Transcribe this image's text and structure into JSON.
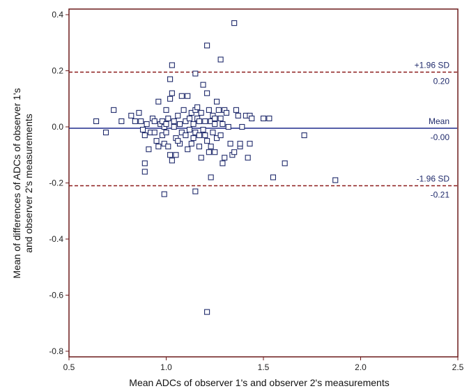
{
  "chart_data": {
    "type": "scatter",
    "title": "",
    "xlabel": "Mean ADCs of observer 1's and observer 2's measurements",
    "ylabel_line1": "Mean of differences of  ADCs of observer 1's",
    "ylabel_line2": "and observer 2's measurements",
    "xlim": [
      0.5,
      2.5
    ],
    "ylim": [
      -0.82,
      0.42
    ],
    "xticks": [
      0.5,
      1.0,
      1.5,
      2.0,
      2.5
    ],
    "xtick_labels": [
      "0.5",
      "1.0",
      "1.5",
      "2.0",
      "2.5"
    ],
    "yticks": [
      0.4,
      0.2,
      0.0,
      -0.2,
      -0.4,
      -0.6,
      -0.8
    ],
    "ytick_labels": [
      "0.4",
      "0.2",
      "0.0",
      "-0.2",
      "-0.4",
      "-0.6",
      "-0.8"
    ],
    "reference_lines": [
      {
        "name": "upper-limit",
        "y": 0.195,
        "style": "dashed",
        "color": "#8b1a1a",
        "label_top": "+1.96 SD",
        "label_bottom": "0.20"
      },
      {
        "name": "mean",
        "y": -0.005,
        "style": "solid",
        "color": "#1f2a8b",
        "label_top": "Mean",
        "label_bottom": "-0.00"
      },
      {
        "name": "lower-limit",
        "y": -0.21,
        "style": "dashed",
        "color": "#8b1a1a",
        "label_top": "-1.96 SD",
        "label_bottom": "-0.21"
      }
    ],
    "frame_color": "#6b1a1a",
    "marker_color": "#1f2a6b",
    "points": [
      [
        0.64,
        0.02
      ],
      [
        0.69,
        -0.02
      ],
      [
        0.73,
        0.06
      ],
      [
        0.77,
        0.02
      ],
      [
        0.82,
        0.04
      ],
      [
        0.84,
        0.02
      ],
      [
        0.86,
        0.05
      ],
      [
        0.87,
        0.02
      ],
      [
        0.88,
        -0.01
      ],
      [
        0.89,
        -0.03
      ],
      [
        0.9,
        0.01
      ],
      [
        0.91,
        -0.08
      ],
      [
        0.92,
        -0.02
      ],
      [
        0.89,
        -0.13
      ],
      [
        0.89,
        -0.16
      ],
      [
        0.93,
        0.03
      ],
      [
        0.94,
        -0.02
      ],
      [
        0.94,
        0.02
      ],
      [
        0.95,
        -0.05
      ],
      [
        0.96,
        -0.07
      ],
      [
        0.96,
        0.09
      ],
      [
        0.97,
        0.01
      ],
      [
        0.98,
        -0.03
      ],
      [
        0.98,
        0.02
      ],
      [
        0.99,
        -0.06
      ],
      [
        0.99,
        0.0
      ],
      [
        1.0,
        0.06
      ],
      [
        1.0,
        -0.02
      ],
      [
        1.01,
        0.03
      ],
      [
        1.01,
        -0.07
      ],
      [
        1.02,
        0.1
      ],
      [
        1.02,
        0.17
      ],
      [
        1.02,
        -0.1
      ],
      [
        1.03,
        0.12
      ],
      [
        1.03,
        -0.12
      ],
      [
        1.04,
        0.02
      ],
      [
        1.04,
        0.0
      ],
      [
        1.05,
        -0.04
      ],
      [
        1.05,
        -0.1
      ],
      [
        1.06,
        0.04
      ],
      [
        1.07,
        0.01
      ],
      [
        1.07,
        -0.06
      ],
      [
        1.08,
        0.11
      ],
      [
        1.08,
        -0.02
      ],
      [
        1.09,
        0.06
      ],
      [
        1.1,
        -0.03
      ],
      [
        1.1,
        0.02
      ],
      [
        1.11,
        0.11
      ],
      [
        1.11,
        -0.08
      ],
      [
        1.12,
        0.03
      ],
      [
        1.12,
        -0.01
      ],
      [
        1.13,
        -0.06
      ],
      [
        1.13,
        0.05
      ],
      [
        1.14,
        0.01
      ],
      [
        1.14,
        -0.04
      ],
      [
        1.15,
        0.06
      ],
      [
        1.15,
        -0.02
      ],
      [
        1.16,
        0.07
      ],
      [
        1.16,
        0.03
      ],
      [
        1.17,
        -0.07
      ],
      [
        1.17,
        0.02
      ],
      [
        1.18,
        -0.11
      ],
      [
        1.18,
        0.05
      ],
      [
        1.19,
        0.15
      ],
      [
        1.19,
        -0.01
      ],
      [
        1.2,
        -0.03
      ],
      [
        1.2,
        0.02
      ],
      [
        1.21,
        0.12
      ],
      [
        1.21,
        -0.05
      ],
      [
        1.22,
        0.06
      ],
      [
        1.22,
        -0.09
      ],
      [
        1.23,
        0.02
      ],
      [
        1.23,
        -0.07
      ],
      [
        1.24,
        0.04
      ],
      [
        1.24,
        -0.02
      ],
      [
        1.25,
        0.01
      ],
      [
        1.25,
        -0.09
      ],
      [
        1.26,
        0.09
      ],
      [
        1.26,
        -0.04
      ],
      [
        1.27,
        0.06
      ],
      [
        1.28,
        -0.03
      ],
      [
        1.28,
        0.03
      ],
      [
        1.29,
        -0.13
      ],
      [
        1.29,
        0.01
      ],
      [
        1.3,
        0.06
      ],
      [
        1.3,
        -0.11
      ],
      [
        1.31,
        0.05
      ],
      [
        1.32,
        0.0
      ],
      [
        1.33,
        -0.06
      ],
      [
        1.34,
        -0.1
      ],
      [
        1.35,
        -0.09
      ],
      [
        1.36,
        0.06
      ],
      [
        1.37,
        0.04
      ],
      [
        1.38,
        -0.07
      ],
      [
        1.38,
        -0.06
      ],
      [
        1.39,
        0.0
      ],
      [
        1.41,
        0.04
      ],
      [
        1.42,
        -0.11
      ],
      [
        1.43,
        -0.06
      ],
      [
        1.43,
        0.04
      ],
      [
        1.44,
        0.03
      ],
      [
        1.5,
        0.03
      ],
      [
        1.53,
        0.03
      ],
      [
        1.55,
        -0.18
      ],
      [
        1.61,
        -0.13
      ],
      [
        1.71,
        -0.03
      ],
      [
        1.87,
        -0.19
      ],
      [
        0.99,
        -0.24
      ],
      [
        1.15,
        -0.23
      ],
      [
        1.23,
        -0.18
      ],
      [
        1.03,
        0.22
      ],
      [
        1.15,
        0.19
      ],
      [
        1.21,
        0.29
      ],
      [
        1.28,
        0.24
      ],
      [
        1.35,
        0.37
      ],
      [
        1.21,
        -0.66
      ],
      [
        1.0,
        0.01
      ],
      [
        1.06,
        -0.05
      ],
      [
        1.17,
        -0.03
      ],
      [
        1.25,
        0.03
      ]
    ]
  }
}
